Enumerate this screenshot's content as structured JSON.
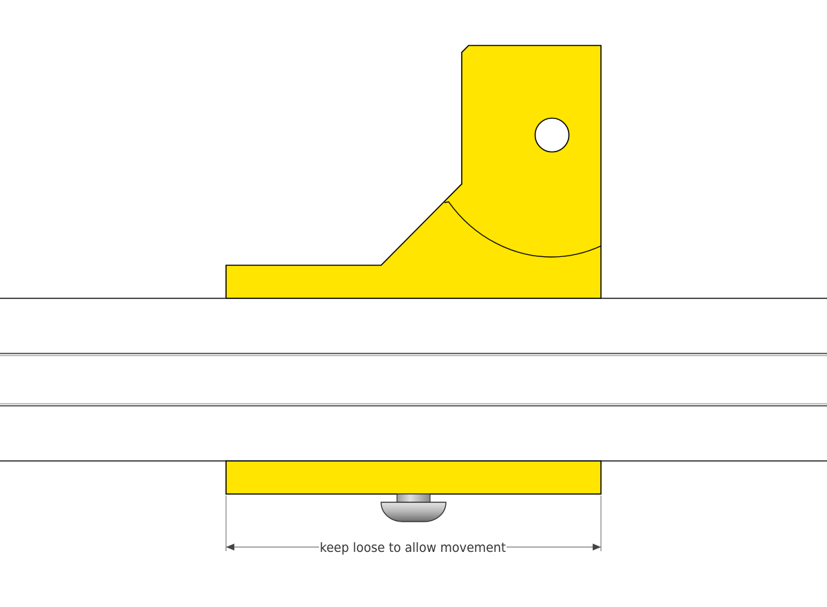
{
  "colors": {
    "bracket_fill": "#FFE500",
    "outline": "#000000",
    "rail_line": "#111111",
    "rail_groove": "#555555",
    "dimension_line": "#555555",
    "screw_head": "#b8b8b8",
    "screw_shank": "#c8c8c8"
  },
  "annotation": {
    "dimension_label": "keep loose to allow movement"
  }
}
